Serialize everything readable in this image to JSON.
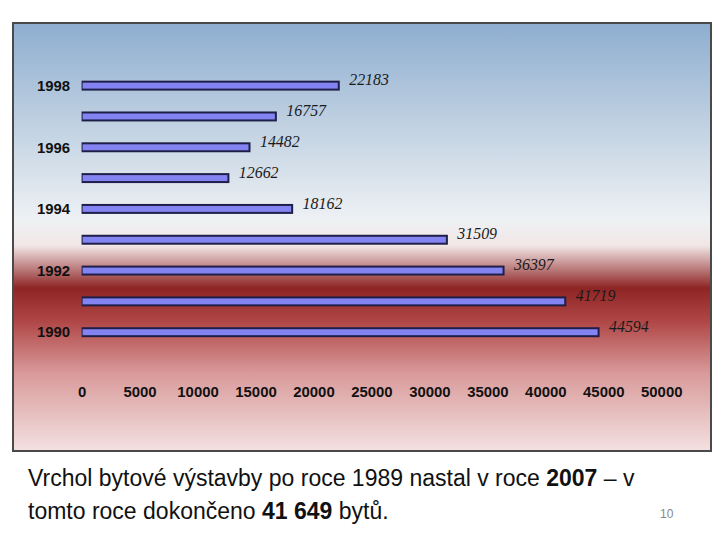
{
  "chart_data": {
    "type": "bar",
    "orientation": "horizontal",
    "categories": [
      "1998",
      null,
      "1996",
      null,
      "1994",
      null,
      "1992",
      null,
      "1990"
    ],
    "values": [
      22183,
      16757,
      14482,
      12662,
      18162,
      31509,
      36397,
      41719,
      44594
    ],
    "color": "#8383f2",
    "xlim": [
      0,
      50000
    ],
    "xticks": [
      0,
      5000,
      10000,
      15000,
      20000,
      25000,
      30000,
      35000,
      40000,
      45000,
      50000
    ],
    "grid": false,
    "data_labels": true,
    "caption": [
      "Vrchol bytové výstavby po roce 1989 nastal v roce ",
      "2007",
      " – v tomto roce dokončeno ",
      "41 649",
      " bytů."
    ],
    "annotations": [
      "10"
    ]
  }
}
